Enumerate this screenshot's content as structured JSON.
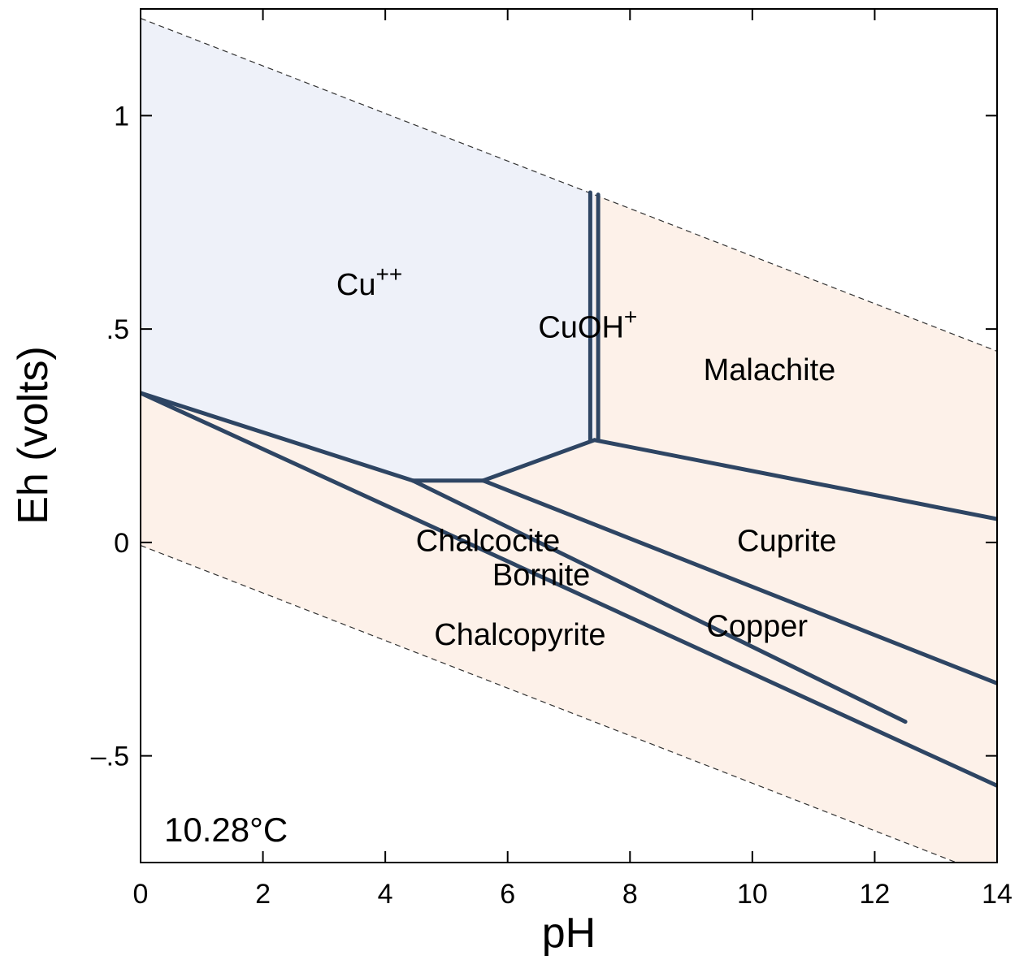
{
  "chart_data": {
    "type": "phase-diagram",
    "xlabel": "pH",
    "ylabel": "Eh (volts)",
    "xlim": [
      0,
      14
    ],
    "ylim": [
      -0.75,
      1.25
    ],
    "x_ticks": [
      0,
      2,
      4,
      6,
      8,
      10,
      12,
      14
    ],
    "x_tick_labels": [
      "0",
      "2",
      "4",
      "6",
      "8",
      "10",
      "12",
      "14"
    ],
    "y_ticks": [
      -0.5,
      0,
      0.5,
      1
    ],
    "y_tick_labels": [
      "–.5",
      "0",
      ".5",
      "1"
    ],
    "temperature_label": "10.28°C",
    "colors": {
      "aqueous_fill": "#eef1f9",
      "mineral_fill": "#fdf1e9",
      "boundary": "#2e4563",
      "water_limit": "#333333"
    },
    "water_limits": [
      {
        "name": "upper",
        "points": [
          [
            0,
            1.228
          ],
          [
            14,
            0.448
          ]
        ]
      },
      {
        "name": "lower",
        "points": [
          [
            0,
            -0.007
          ],
          [
            14,
            -0.787
          ]
        ]
      }
    ],
    "fields": [
      {
        "name": "Cu",
        "superscript": "++",
        "kind": "aqueous",
        "label_at": [
          3.2,
          0.58
        ]
      },
      {
        "name": "CuOH",
        "superscript": "+",
        "kind": "aqueous",
        "label_at": [
          6.5,
          0.48
        ]
      },
      {
        "name": "Malachite",
        "superscript": "",
        "kind": "mineral",
        "label_at": [
          9.2,
          0.38
        ]
      },
      {
        "name": "Cuprite",
        "superscript": "",
        "kind": "mineral",
        "label_at": [
          9.75,
          -0.02
        ]
      },
      {
        "name": "Chalcocite",
        "superscript": "",
        "kind": "mineral",
        "label_at": [
          4.5,
          -0.02
        ]
      },
      {
        "name": "Bornite",
        "superscript": "",
        "kind": "mineral",
        "label_at": [
          5.75,
          -0.1
        ]
      },
      {
        "name": "Chalcopyrite",
        "superscript": "",
        "kind": "mineral",
        "label_at": [
          4.8,
          -0.24
        ]
      },
      {
        "name": "Copper",
        "superscript": "",
        "kind": "mineral",
        "label_at": [
          9.25,
          -0.22
        ]
      }
    ],
    "aqueous_region": [
      [
        0,
        0.35
      ],
      [
        0,
        1.228
      ],
      [
        7.42,
        0.815
      ],
      [
        7.42,
        0.24
      ],
      [
        5.6,
        0.145
      ],
      [
        4.45,
        0.145
      ]
    ],
    "boundaries": [
      {
        "points": [
          [
            0,
            0.35
          ],
          [
            4.45,
            0.145
          ]
        ]
      },
      {
        "points": [
          [
            4.45,
            0.145
          ],
          [
            5.6,
            0.145
          ]
        ]
      },
      {
        "points": [
          [
            5.6,
            0.145
          ],
          [
            7.42,
            0.24
          ]
        ]
      },
      {
        "points": [
          [
            7.42,
            0.24
          ],
          [
            14,
            0.055
          ]
        ]
      },
      {
        "points": [
          [
            7.35,
            0.82
          ],
          [
            7.35,
            0.24
          ]
        ]
      },
      {
        "points": [
          [
            7.48,
            0.815
          ],
          [
            7.48,
            0.24
          ]
        ]
      },
      {
        "points": [
          [
            5.6,
            0.145
          ],
          [
            14,
            -0.33
          ]
        ]
      },
      {
        "points": [
          [
            4.45,
            0.145
          ],
          [
            12.5,
            -0.42
          ]
        ]
      },
      {
        "points": [
          [
            0,
            0.35
          ],
          [
            14,
            -0.57
          ]
        ]
      }
    ]
  }
}
